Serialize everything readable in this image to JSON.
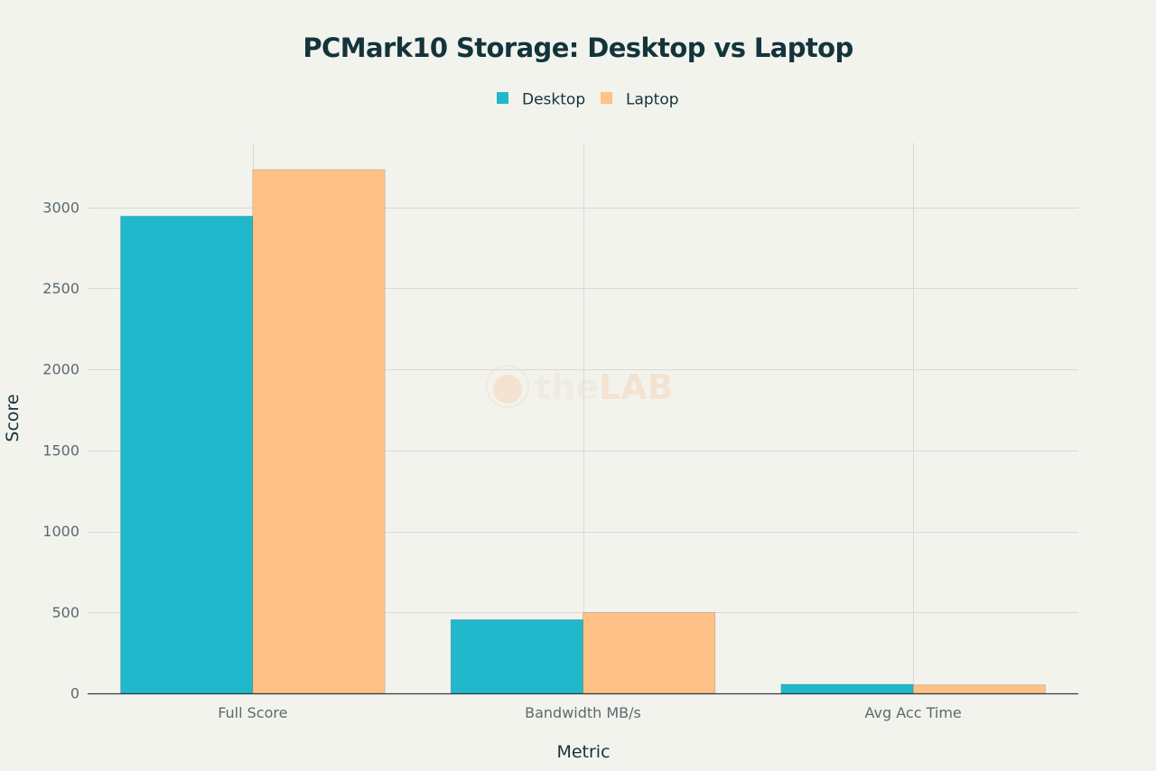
{
  "chart_data": {
    "type": "bar",
    "title": "PCMark10 Storage: Desktop vs Laptop",
    "xlabel": "Metric",
    "ylabel": "Score",
    "categories": [
      "Full Score",
      "Bandwidth MB/s",
      "Avg Acc Time"
    ],
    "series": [
      {
        "name": "Desktop",
        "color": "#21b8cc",
        "values": [
          2946,
          455,
          56
        ]
      },
      {
        "name": "Laptop",
        "color": "#ffc185",
        "values": [
          3233,
          498,
          52
        ]
      }
    ],
    "ylim": [
      0,
      3400
    ],
    "yticks": [
      0,
      500,
      1000,
      1500,
      2000,
      2500,
      3000
    ],
    "ytick_labels": [
      "0",
      "500",
      "1000",
      "1500",
      "2000",
      "2500",
      "3000"
    ],
    "grid": true,
    "legend_position": "top-center"
  },
  "watermark": {
    "brand_light": "the",
    "brand_bold": "LAB"
  }
}
